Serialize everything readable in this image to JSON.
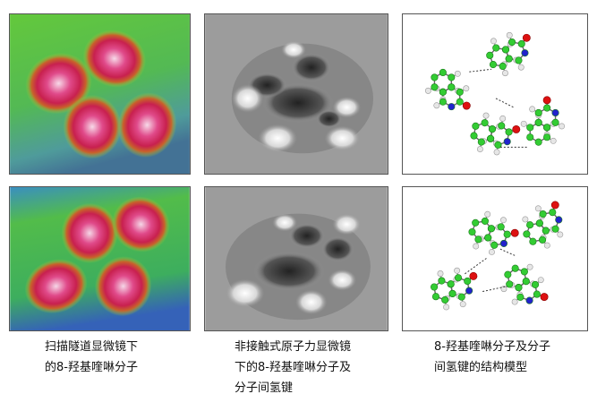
{
  "captions": {
    "stm": [
      "扫描隧道显微镜下",
      "的8-羟基喹啉分子"
    ],
    "afm": [
      "非接触式原子力显微镜",
      "下的8-羟基喹啉分子及",
      "分子间氢键"
    ],
    "model": [
      "8-羟基喹啉分子及分子",
      "间氢键的结构模型"
    ]
  },
  "colors": {
    "carbon": "#33cc33",
    "nitrogen": "#2222cc",
    "oxygen": "#dd1111",
    "hydrogen": "#e6e6e6"
  }
}
